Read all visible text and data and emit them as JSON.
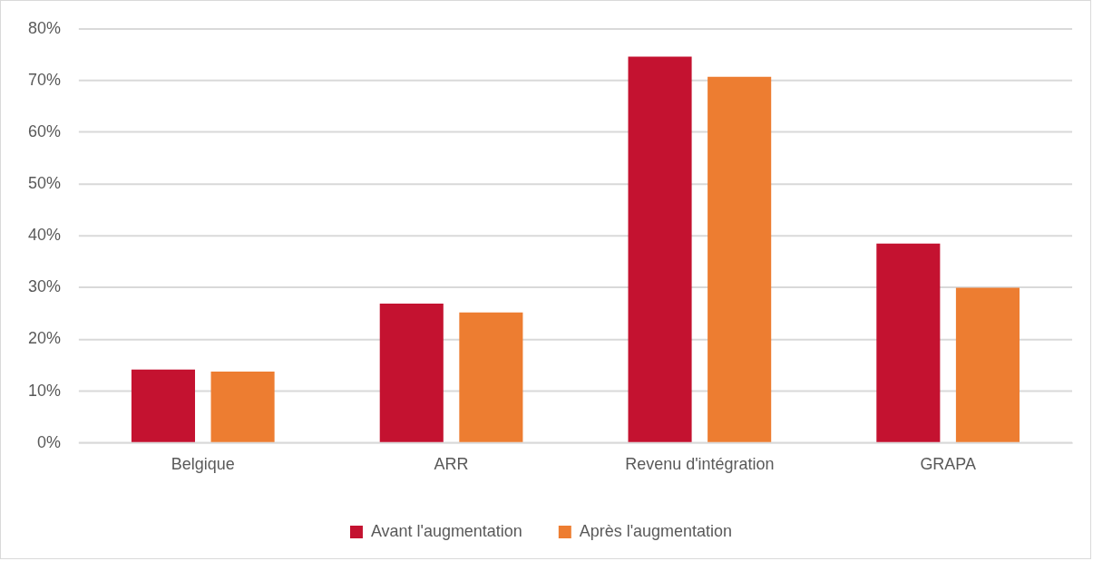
{
  "chart_data": {
    "type": "bar",
    "categories": [
      "Belgique",
      "ARR",
      "Revenu d'intégration",
      "GRAPA"
    ],
    "series": [
      {
        "name": "Avant l'augmentation",
        "color": "#c41230",
        "values": [
          14.2,
          26.9,
          74.6,
          38.5
        ]
      },
      {
        "name": "Après l'augmentation",
        "color": "#ed7d31",
        "values": [
          13.8,
          25.2,
          70.7,
          30.0
        ]
      }
    ],
    "ylim": [
      0,
      80
    ],
    "yticks": [
      {
        "value": 0,
        "label": "0%"
      },
      {
        "value": 10,
        "label": "10%"
      },
      {
        "value": 20,
        "label": "20%"
      },
      {
        "value": 30,
        "label": "30%"
      },
      {
        "value": 40,
        "label": "40%"
      },
      {
        "value": 50,
        "label": "50%"
      },
      {
        "value": 60,
        "label": "60%"
      },
      {
        "value": 70,
        "label": "70%"
      },
      {
        "value": 80,
        "label": "80%"
      }
    ],
    "grid": "y",
    "legend": "bottom"
  }
}
